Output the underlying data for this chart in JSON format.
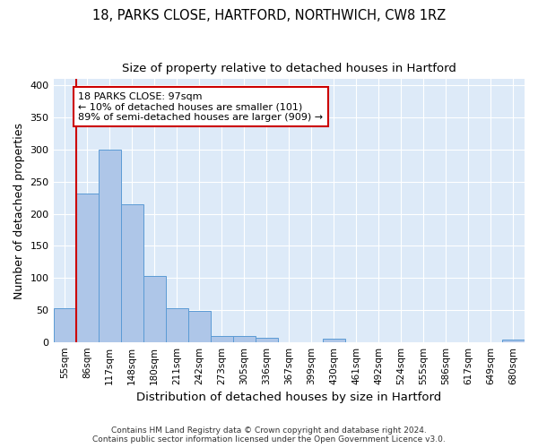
{
  "title_line1": "18, PARKS CLOSE, HARTFORD, NORTHWICH, CW8 1RZ",
  "title_line2": "Size of property relative to detached houses in Hartford",
  "xlabel": "Distribution of detached houses by size in Hartford",
  "ylabel": "Number of detached properties",
  "categories": [
    "55sqm",
    "86sqm",
    "117sqm",
    "148sqm",
    "180sqm",
    "211sqm",
    "242sqm",
    "273sqm",
    "305sqm",
    "336sqm",
    "367sqm",
    "399sqm",
    "430sqm",
    "461sqm",
    "492sqm",
    "524sqm",
    "555sqm",
    "586sqm",
    "617sqm",
    "649sqm",
    "680sqm"
  ],
  "values": [
    53,
    232,
    300,
    215,
    103,
    52,
    49,
    10,
    10,
    6,
    0,
    0,
    5,
    0,
    0,
    0,
    0,
    0,
    0,
    0,
    4
  ],
  "bar_color": "#aec6e8",
  "bar_edge_color": "#5b9bd5",
  "background_color": "#ddeaf8",
  "grid_color": "#ffffff",
  "vline_x": 0.5,
  "vline_color": "#cc0000",
  "annotation_text": "18 PARKS CLOSE: 97sqm\n← 10% of detached houses are smaller (101)\n89% of semi-detached houses are larger (909) →",
  "annotation_box_color": "#ffffff",
  "annotation_box_edge_color": "#cc0000",
  "footer_text": "Contains HM Land Registry data © Crown copyright and database right 2024.\nContains public sector information licensed under the Open Government Licence v3.0.",
  "ylim": [
    0,
    410
  ],
  "yticks": [
    0,
    50,
    100,
    150,
    200,
    250,
    300,
    350,
    400
  ],
  "title_fontsize": 10.5,
  "subtitle_fontsize": 9.5,
  "axis_label_fontsize": 9,
  "tick_fontsize": 8,
  "footer_fontsize": 6.5,
  "annotation_fontsize": 8
}
